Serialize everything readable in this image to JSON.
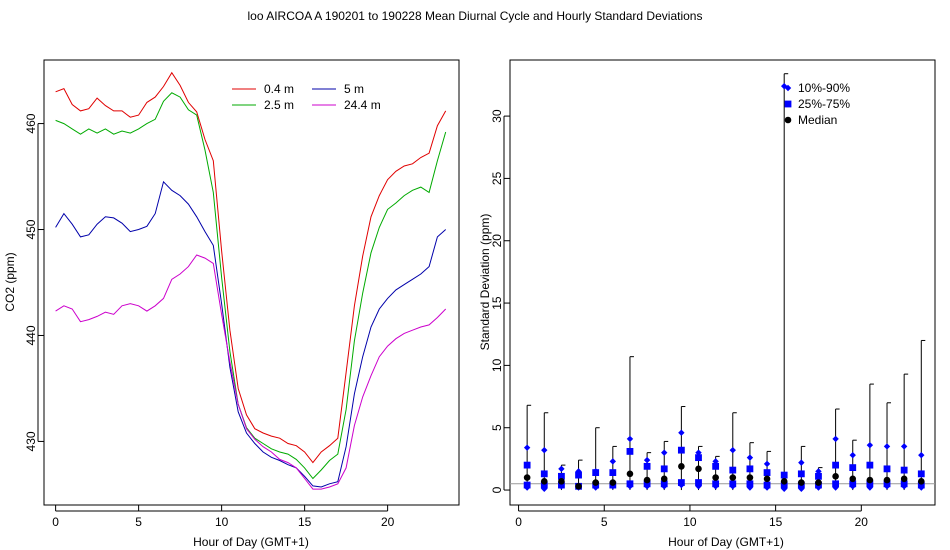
{
  "figure_title": "loo   AIRCOA A   190201 to 190228   Mean Diurnal Cycle and Hourly Standard Deviations",
  "chart_data": [
    {
      "type": "line",
      "title": "",
      "xlabel": "Hour of Day (GMT+1)",
      "ylabel": "CO2 (ppm)",
      "xlim": [
        -0.7,
        24.3
      ],
      "ylim": [
        424,
        466
      ],
      "x_ticks": [
        0,
        5,
        10,
        15,
        20
      ],
      "y_ticks": [
        430,
        440,
        450,
        460
      ],
      "legend": "top-right",
      "x": [
        0,
        0.5,
        1,
        1.5,
        2,
        2.5,
        3,
        3.5,
        4,
        4.5,
        5,
        5.5,
        6,
        6.5,
        7,
        7.5,
        8,
        8.5,
        9,
        9.5,
        10,
        10.5,
        11,
        11.5,
        12,
        12.5,
        13,
        13.5,
        14,
        14.5,
        15,
        15.5,
        16,
        16.5,
        17,
        17.5,
        18,
        18.5,
        19,
        19.5,
        20,
        20.5,
        21,
        21.5,
        22,
        22.5,
        23,
        23.5
      ],
      "series": [
        {
          "name": "0.4 m",
          "color": "#e00000",
          "values": [
            463,
            463.3,
            461.8,
            461.2,
            461.4,
            462.4,
            461.7,
            461.2,
            461.2,
            460.6,
            460.8,
            462,
            462.5,
            463.5,
            464.8,
            463.6,
            462,
            461.1,
            458.5,
            456.5,
            448,
            440.5,
            435,
            432.5,
            431.2,
            430.8,
            430.5,
            430.3,
            429.8,
            429.6,
            429,
            428,
            429,
            429.6,
            430.3,
            436.5,
            442.8,
            447.5,
            451.2,
            453.2,
            454.7,
            455.5,
            456,
            456.2,
            456.8,
            457.2,
            459.8,
            461.2
          ]
        },
        {
          "name": "2.5 m",
          "color": "#00aa00",
          "values": [
            460.3,
            460,
            459.5,
            459,
            459.5,
            459.1,
            459.5,
            459,
            459.3,
            459.1,
            459.5,
            460,
            460.4,
            462.1,
            462.9,
            462.5,
            461.3,
            460.8,
            457.5,
            453.5,
            445.5,
            438.5,
            433.5,
            431.3,
            430.3,
            429.8,
            429.3,
            429,
            428.8,
            428.3,
            427.5,
            426.5,
            427.3,
            428.2,
            428.8,
            433,
            439.5,
            444,
            447.8,
            450.2,
            451.9,
            452.5,
            453.2,
            453.7,
            454,
            453.5,
            456.5,
            459.2
          ]
        },
        {
          "name": "5 m",
          "color": "#0000aa",
          "values": [
            450.2,
            451.5,
            450.5,
            449.3,
            449.5,
            450.5,
            451.2,
            451.1,
            450.6,
            449.8,
            450,
            450.3,
            451.5,
            454.5,
            453.7,
            453.2,
            452.4,
            451.2,
            449.8,
            448.5,
            443,
            437,
            432.8,
            430.8,
            429.8,
            429,
            428.5,
            428.2,
            427.8,
            427.5,
            426.7,
            425.8,
            425.7,
            426,
            426.2,
            429.5,
            434.5,
            438,
            440.8,
            442.5,
            443.5,
            444.3,
            444.8,
            445.3,
            445.8,
            446.5,
            449.3,
            450
          ]
        },
        {
          "name": "24.4 m",
          "color": "#cc00cc",
          "values": [
            442.3,
            442.8,
            442.5,
            441.3,
            441.5,
            441.8,
            442.2,
            442,
            442.8,
            443,
            442.8,
            442.3,
            442.8,
            443.5,
            445.3,
            445.8,
            446.5,
            447.6,
            447.3,
            446.8,
            442,
            437.5,
            433.5,
            431.2,
            430.2,
            429.5,
            429,
            428.3,
            428,
            427.5,
            426.5,
            425.5,
            425.5,
            425.7,
            426,
            427.5,
            431.5,
            434.2,
            436.2,
            438,
            439,
            439.7,
            440.2,
            440.5,
            440.8,
            441,
            441.7,
            442.5
          ]
        }
      ]
    },
    {
      "type": "scatter",
      "title": "",
      "xlabel": "Hour of Day (GMT+1)",
      "ylabel": "Standard Deviation (ppm)",
      "xlim": [
        -0.5,
        24.3
      ],
      "ylim": [
        -1.2,
        34.5
      ],
      "x_ticks": [
        0,
        5,
        10,
        15,
        20
      ],
      "y_ticks": [
        0,
        5,
        10,
        15,
        20,
        25,
        30
      ],
      "legend": "top-right",
      "reference_line": 0.5,
      "hours": [
        0.5,
        1.5,
        2.5,
        3.5,
        4.5,
        5.5,
        6.5,
        7.5,
        8.5,
        9.5,
        10.5,
        11.5,
        12.5,
        13.5,
        14.5,
        15.5,
        16.5,
        17.5,
        18.5,
        19.5,
        20.5,
        21.5,
        22.5,
        23.5
      ],
      "series": [
        {
          "name": "10%-90%",
          "color": "#0000ff",
          "marker": "diamond",
          "low": [
            0.2,
            0.1,
            0.3,
            0.2,
            0.2,
            0.3,
            0.3,
            0.3,
            0.3,
            0.4,
            0.3,
            0.3,
            0.3,
            0.2,
            0.2,
            0.1,
            0.1,
            0.2,
            0.2,
            0.3,
            0.2,
            0.3,
            0.3,
            0.2
          ],
          "high": [
            3.4,
            3.2,
            1.7,
            1.5,
            1.5,
            2.3,
            4.1,
            2.4,
            3.0,
            4.6,
            3.0,
            2.3,
            3.2,
            2.6,
            2.1,
            32.4,
            2.2,
            1.5,
            4.1,
            2.8,
            3.6,
            3.5,
            3.5,
            2.8
          ]
        },
        {
          "name": "25%-75%",
          "color": "#0000ff",
          "marker": "square",
          "low": [
            0.4,
            0.4,
            0.4,
            0.3,
            0.4,
            0.4,
            0.5,
            0.5,
            0.5,
            0.6,
            0.6,
            0.5,
            0.5,
            0.5,
            0.4,
            0.4,
            0.4,
            0.4,
            0.5,
            0.5,
            0.5,
            0.5,
            0.5,
            0.4
          ],
          "high": [
            2.0,
            1.3,
            1.1,
            1.2,
            1.4,
            1.4,
            3.1,
            1.9,
            1.7,
            3.2,
            2.6,
            1.9,
            1.6,
            1.7,
            1.4,
            1.2,
            1.3,
            1.1,
            2.0,
            1.8,
            2.0,
            1.7,
            1.6,
            1.3
          ]
        },
        {
          "name": "Median",
          "color": "#000000",
          "marker": "circle",
          "values": [
            1.0,
            0.7,
            0.7,
            0.3,
            0.6,
            0.6,
            1.3,
            0.8,
            0.9,
            1.9,
            1.7,
            1.0,
            1.0,
            1.0,
            0.9,
            0.7,
            0.6,
            0.6,
            1.1,
            0.9,
            0.8,
            0.8,
            0.9,
            0.7
          ]
        }
      ],
      "whisker_max": [
        6.8,
        6.2,
        2.0,
        2.4,
        5.0,
        3.5,
        10.7,
        3.0,
        3.9,
        6.7,
        3.5,
        2.7,
        6.2,
        3.8,
        3.1,
        33.4,
        3.5,
        1.8,
        6.5,
        4.0,
        8.5,
        7.0,
        9.3,
        12.0
      ]
    }
  ]
}
